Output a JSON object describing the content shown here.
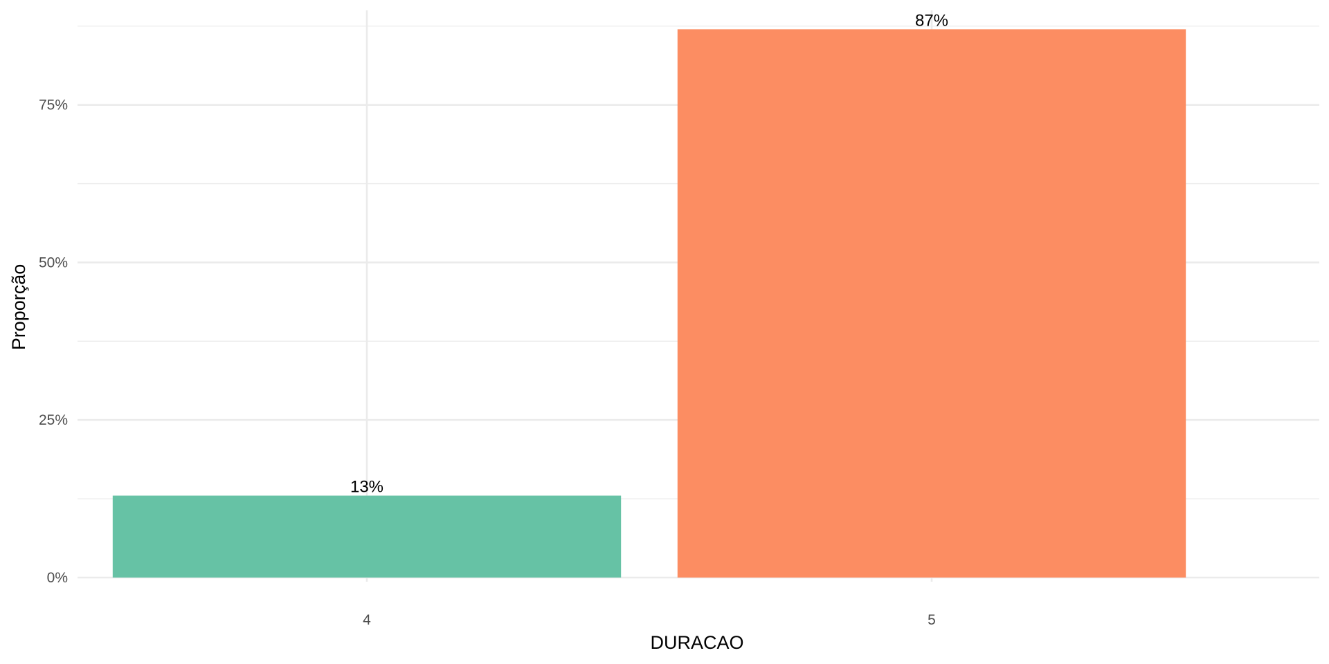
{
  "chart_data": {
    "type": "bar",
    "title": "",
    "xlabel": "DURACAO",
    "ylabel": "Proporção",
    "categories": [
      "4",
      "5"
    ],
    "values": [
      0.13,
      0.87
    ],
    "value_labels": [
      "13%",
      "87%"
    ],
    "colors": [
      "#66c2a5",
      "#fc8d62"
    ],
    "ylim": [
      0,
      0.9
    ],
    "yticks": [
      0,
      0.25,
      0.5,
      0.75
    ],
    "ytick_labels": [
      "0%",
      "25%",
      "50%",
      "75%"
    ],
    "y_minor_ticks": [
      0.125,
      0.375,
      0.625,
      0.875
    ],
    "grid": true,
    "legend": "none"
  }
}
